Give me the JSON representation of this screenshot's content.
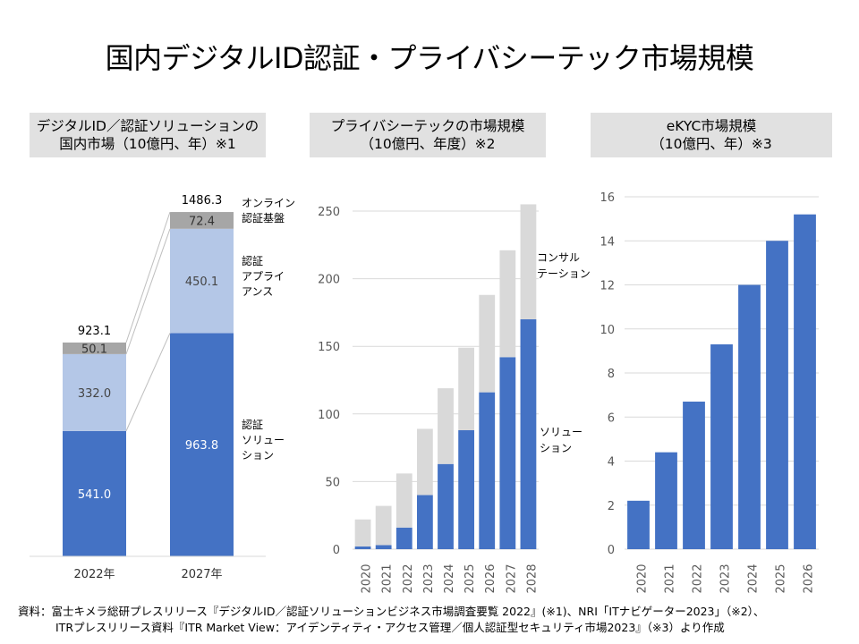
{
  "page": {
    "title": "国内デジタルID認証・プライバシーテック市場規模",
    "source_line1": "資料：富士キメラ総研プレスリリース『デジタルID／認証ソリューションビジネス市場調査要覧 2022』(※1)、NRI「ITナビゲーター2023」（※2）、",
    "source_line2": "ITRプレスリリース資料『ITR Market View：アイデンティティ・アクセス管理／個人認証型セキュリティ市場2023』（※3）より作成"
  },
  "colors": {
    "blue": "#4472c4",
    "light_blue": "#b4c7e7",
    "gray": "#a6a6a6",
    "light_gray": "#d9d9d9",
    "header_bg": "#e1e1e1"
  },
  "chart_data": [
    {
      "type": "bar",
      "stacked": true,
      "title": [
        "デジタルID／認証ソリューションの",
        "国内市場（10億円、年）※1"
      ],
      "categories": [
        "2022年",
        "2027年"
      ],
      "series": [
        {
          "name": "認証ソリューション",
          "legend_lines": [
            "認証",
            "ソリュー",
            "ション"
          ],
          "values": [
            541.0,
            963.8
          ]
        },
        {
          "name": "認証アプライアンス",
          "legend_lines": [
            "認証",
            "アプライ",
            "アンス"
          ],
          "values": [
            332.0,
            450.1
          ]
        },
        {
          "name": "オンライン認証基盤",
          "legend_lines": [
            "オンライン",
            "認証基盤"
          ],
          "values": [
            50.1,
            72.4
          ]
        }
      ],
      "totals": [
        923.1,
        1486.3
      ],
      "total_labels": [
        "923.1",
        "1486.3"
      ],
      "value_labels": [
        [
          "541.0",
          "963.8"
        ],
        [
          "332.0",
          "450.1"
        ],
        [
          "50.1",
          "72.4"
        ]
      ],
      "ylim": [
        0,
        1500
      ]
    },
    {
      "type": "bar",
      "stacked": true,
      "title": [
        "プライバシーテックの市場規模",
        "（10億円、年度）※2"
      ],
      "categories": [
        "2020",
        "2021",
        "2022",
        "2023",
        "2024",
        "2025",
        "2026",
        "2027",
        "2028"
      ],
      "series": [
        {
          "name": "ソリューション",
          "legend_lines": [
            "ソリュー",
            "ション"
          ],
          "values": [
            2,
            3,
            16,
            40,
            63,
            88,
            116,
            142,
            170
          ]
        },
        {
          "name": "コンサルテーション",
          "legend_lines": [
            "コンサル",
            "テーション"
          ],
          "values": [
            20,
            29,
            40,
            49,
            56,
            61,
            72,
            79,
            85
          ]
        }
      ],
      "ylim": [
        0,
        250
      ],
      "yticks": [
        "0",
        "50",
        "100",
        "150",
        "200",
        "250"
      ]
    },
    {
      "type": "bar",
      "title": [
        "eKYC市場規模",
        "（10億円、年）※3"
      ],
      "categories": [
        "2020",
        "2021",
        "2022",
        "2023",
        "2024",
        "2025",
        "2026"
      ],
      "values": [
        2.2,
        4.4,
        6.7,
        9.3,
        12.0,
        14.0,
        15.2
      ],
      "ylim": [
        0,
        16
      ],
      "yticks": [
        "0",
        "2",
        "4",
        "6",
        "8",
        "10",
        "12",
        "14",
        "16"
      ]
    }
  ]
}
